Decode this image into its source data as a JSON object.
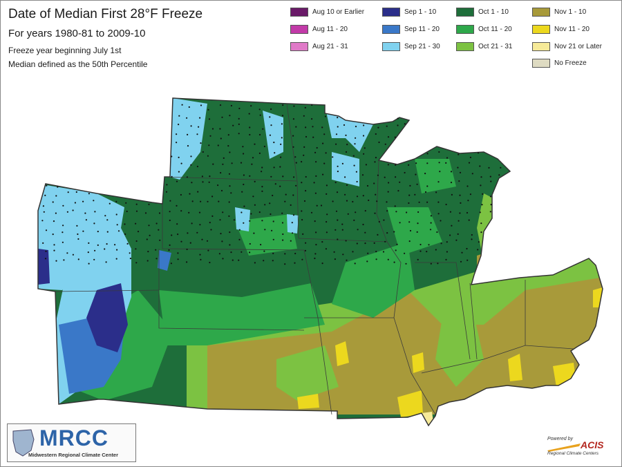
{
  "header": {
    "title": "Date of Median First 28°F Freeze",
    "subtitle": "For years 1980-81 to 2009-10",
    "note1": "Freeze year beginning July 1st",
    "note2": "Median defined as the 50th Percentile"
  },
  "legend": [
    {
      "label": "Aug 10 or Earlier",
      "color": "#6a1a68"
    },
    {
      "label": "Aug 11 - 20",
      "color": "#c23aa8"
    },
    {
      "label": "Aug 21 - 31",
      "color": "#e07ac8"
    },
    {
      "label": "Sep 1 - 10",
      "color": "#2b2e8a"
    },
    {
      "label": "Sep 11 - 20",
      "color": "#3a78c8"
    },
    {
      "label": "Sep 21 - 30",
      "color": "#80d2ef"
    },
    {
      "label": "Oct 1 - 10",
      "color": "#1e6e3a"
    },
    {
      "label": "Oct 11 - 20",
      "color": "#2ea84a"
    },
    {
      "label": "Oct 21 - 31",
      "color": "#7cc242"
    },
    {
      "label": "Nov 1 - 10",
      "color": "#a89a3a"
    },
    {
      "label": "Nov 11 - 20",
      "color": "#ecd81e"
    },
    {
      "label": "Nov 21 or Later",
      "color": "#f6ea98"
    },
    {
      "label": "No Freeze",
      "color": "#dedbc2"
    }
  ],
  "logo": {
    "name": "MRCC",
    "subtitle": "Midwestern Regional Climate Center"
  },
  "credit": {
    "top": "Powered by",
    "name": "ACIS",
    "sub": "Regional Climate Centers"
  }
}
